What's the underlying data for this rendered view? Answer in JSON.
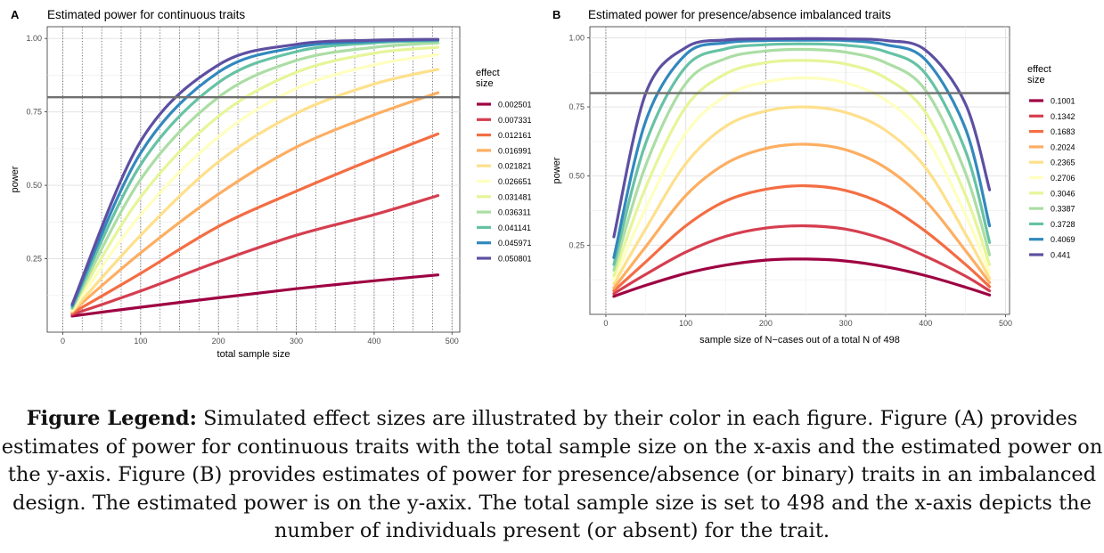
{
  "caption": {
    "lead": "Figure Legend:",
    "body": "Simulated effect sizes are illustrated by their color in each figure. Figure (A) provides estimates of power for continuous traits with the total sample size on the x-axis and the estimated power on the y-axis. Figure (B) provides estimates of power for presence/absence (or binary) traits in an imbalanced design. The estimated power is on the y-axix. The total sample size is set to 498 and the x-axis depicts the number of individuals present (or absent) for the trait."
  },
  "chart_data": [
    {
      "panel": "A",
      "type": "line",
      "title": "Estimated power for continuous traits",
      "xlabel": "total sample size",
      "ylabel": "power",
      "xlim": [
        -20,
        510
      ],
      "ylim": [
        0.0,
        1.04
      ],
      "xticks": [
        0,
        100,
        200,
        300,
        400,
        500
      ],
      "yticks": [
        0.25,
        0.5,
        0.75,
        1.0
      ],
      "ytick_labels": [
        "0.25",
        "0.50",
        "0.75",
        "1.00"
      ],
      "grid": true,
      "reference_line_y": 0.8,
      "dotted_vlines_x": [
        0,
        25,
        50,
        75,
        100,
        125,
        150,
        175,
        200,
        225,
        250,
        275,
        300,
        325,
        350,
        375,
        400,
        425,
        450,
        475,
        500
      ],
      "legend_title": "effect size",
      "legend_position": "right",
      "series": [
        {
          "name": "0.002501",
          "color": "#9e0142",
          "x": [
            12,
            100,
            200,
            300,
            400,
            482
          ],
          "values": [
            0.055,
            0.085,
            0.117,
            0.148,
            0.175,
            0.195
          ]
        },
        {
          "name": "0.007331",
          "color": "#d53e4f",
          "x": [
            12,
            100,
            200,
            300,
            400,
            482
          ],
          "values": [
            0.06,
            0.14,
            0.24,
            0.33,
            0.4,
            0.465
          ]
        },
        {
          "name": "0.012161",
          "color": "#f46d43",
          "x": [
            12,
            100,
            200,
            300,
            400,
            482
          ],
          "values": [
            0.065,
            0.2,
            0.36,
            0.48,
            0.59,
            0.675
          ]
        },
        {
          "name": "0.016991",
          "color": "#fdae61",
          "x": [
            12,
            100,
            200,
            300,
            400,
            482
          ],
          "values": [
            0.07,
            0.27,
            0.47,
            0.63,
            0.74,
            0.815
          ]
        },
        {
          "name": "0.021821",
          "color": "#fee08b",
          "x": [
            12,
            100,
            200,
            300,
            400,
            482
          ],
          "values": [
            0.07,
            0.33,
            0.58,
            0.745,
            0.845,
            0.895
          ]
        },
        {
          "name": "0.026651",
          "color": "#ffffbf",
          "x": [
            12,
            100,
            200,
            300,
            400,
            482
          ],
          "values": [
            0.075,
            0.4,
            0.665,
            0.83,
            0.91,
            0.945
          ]
        },
        {
          "name": "0.031481",
          "color": "#e6f598",
          "x": [
            12,
            100,
            200,
            300,
            400,
            482
          ],
          "values": [
            0.08,
            0.46,
            0.735,
            0.885,
            0.95,
            0.97
          ]
        },
        {
          "name": "0.036311",
          "color": "#abdda4",
          "x": [
            12,
            100,
            200,
            300,
            400,
            482
          ],
          "values": [
            0.08,
            0.52,
            0.8,
            0.925,
            0.97,
            0.985
          ]
        },
        {
          "name": "0.041141",
          "color": "#66c2a5",
          "x": [
            12,
            100,
            200,
            300,
            400,
            482
          ],
          "values": [
            0.085,
            0.57,
            0.85,
            0.955,
            0.985,
            0.992
          ]
        },
        {
          "name": "0.045971",
          "color": "#3288bd",
          "x": [
            12,
            100,
            200,
            300,
            400,
            482
          ],
          "values": [
            0.09,
            0.61,
            0.885,
            0.97,
            0.99,
            0.995
          ]
        },
        {
          "name": "0.050801",
          "color": "#5e4fa2",
          "x": [
            12,
            100,
            200,
            300,
            400,
            482
          ],
          "values": [
            0.095,
            0.65,
            0.91,
            0.98,
            0.994,
            0.997
          ]
        }
      ]
    },
    {
      "panel": "B",
      "type": "line",
      "title": "Estimated power for presence/absence imbalanced traits",
      "xlabel": "sample size of N−cases out of a total N of 498",
      "ylabel": "power",
      "xlim": [
        -20,
        505
      ],
      "ylim": [
        0.0,
        1.04
      ],
      "xticks": [
        0,
        100,
        200,
        300,
        400,
        500
      ],
      "yticks": [
        0.25,
        0.5,
        0.75,
        1.0
      ],
      "ytick_labels": [
        "0.25",
        "0.50",
        "0.75",
        "1.00"
      ],
      "grid": true,
      "reference_line_y": 0.8,
      "dotted_vlines_x": [
        0,
        200,
        400
      ],
      "legend_title": "effect size",
      "legend_position": "right",
      "series": [
        {
          "name": "0.1001",
          "color": "#9e0142",
          "x": [
            10,
            50,
            100,
            150,
            200,
            250,
            300,
            350,
            400,
            450,
            480
          ],
          "values": [
            0.065,
            0.105,
            0.148,
            0.178,
            0.196,
            0.2,
            0.193,
            0.172,
            0.14,
            0.098,
            0.07
          ]
        },
        {
          "name": "0.1342",
          "color": "#d53e4f",
          "x": [
            10,
            50,
            100,
            150,
            200,
            250,
            300,
            350,
            400,
            450,
            480
          ],
          "values": [
            0.075,
            0.145,
            0.225,
            0.282,
            0.312,
            0.32,
            0.308,
            0.27,
            0.21,
            0.138,
            0.085
          ]
        },
        {
          "name": "0.1683",
          "color": "#f46d43",
          "x": [
            10,
            50,
            100,
            150,
            200,
            250,
            300,
            350,
            400,
            450,
            480
          ],
          "values": [
            0.085,
            0.19,
            0.32,
            0.41,
            0.452,
            0.465,
            0.448,
            0.395,
            0.3,
            0.18,
            0.1
          ]
        },
        {
          "name": "0.2024",
          "color": "#fdae61",
          "x": [
            10,
            50,
            100,
            150,
            200,
            250,
            300,
            350,
            400,
            450,
            480
          ],
          "values": [
            0.095,
            0.245,
            0.43,
            0.545,
            0.6,
            0.615,
            0.595,
            0.53,
            0.41,
            0.23,
            0.115
          ]
        },
        {
          "name": "0.2365",
          "color": "#fee08b",
          "x": [
            10,
            50,
            100,
            150,
            200,
            250,
            300,
            350,
            400,
            450,
            480
          ],
          "values": [
            0.11,
            0.31,
            0.545,
            0.68,
            0.735,
            0.75,
            0.73,
            0.665,
            0.53,
            0.29,
            0.13
          ]
        },
        {
          "name": "0.2706",
          "color": "#ffffbf",
          "x": [
            10,
            50,
            100,
            150,
            200,
            250,
            300,
            350,
            400,
            450,
            480
          ],
          "values": [
            0.125,
            0.385,
            0.655,
            0.79,
            0.84,
            0.855,
            0.837,
            0.775,
            0.64,
            0.36,
            0.15
          ]
        },
        {
          "name": "0.3046",
          "color": "#e6f598",
          "x": [
            10,
            50,
            100,
            150,
            200,
            250,
            300,
            350,
            400,
            450,
            480
          ],
          "values": [
            0.14,
            0.46,
            0.75,
            0.87,
            0.91,
            0.918,
            0.905,
            0.855,
            0.73,
            0.43,
            0.18
          ]
        },
        {
          "name": "0.3387",
          "color": "#abdda4",
          "x": [
            10,
            50,
            100,
            150,
            200,
            250,
            300,
            350,
            400,
            450,
            480
          ],
          "values": [
            0.16,
            0.54,
            0.835,
            0.925,
            0.952,
            0.958,
            0.948,
            0.91,
            0.81,
            0.51,
            0.215
          ]
        },
        {
          "name": "0.3728",
          "color": "#66c2a5",
          "x": [
            10,
            50,
            100,
            150,
            200,
            250,
            300,
            350,
            400,
            450,
            480
          ],
          "values": [
            0.18,
            0.62,
            0.895,
            0.96,
            0.975,
            0.978,
            0.973,
            0.95,
            0.87,
            0.59,
            0.26
          ]
        },
        {
          "name": "0.4069",
          "color": "#3288bd",
          "x": [
            10,
            50,
            100,
            150,
            200,
            250,
            300,
            350,
            400,
            450,
            480
          ],
          "values": [
            0.205,
            0.7,
            0.94,
            0.982,
            0.99,
            0.991,
            0.99,
            0.975,
            0.92,
            0.67,
            0.32
          ]
        },
        {
          "name": "0.441",
          "color": "#5e4fa2",
          "x": [
            10,
            50,
            100,
            150,
            200,
            250,
            300,
            350,
            400,
            450,
            480
          ],
          "values": [
            0.28,
            0.8,
            0.965,
            0.992,
            0.996,
            0.997,
            0.996,
            0.99,
            0.955,
            0.76,
            0.45
          ]
        }
      ]
    }
  ]
}
